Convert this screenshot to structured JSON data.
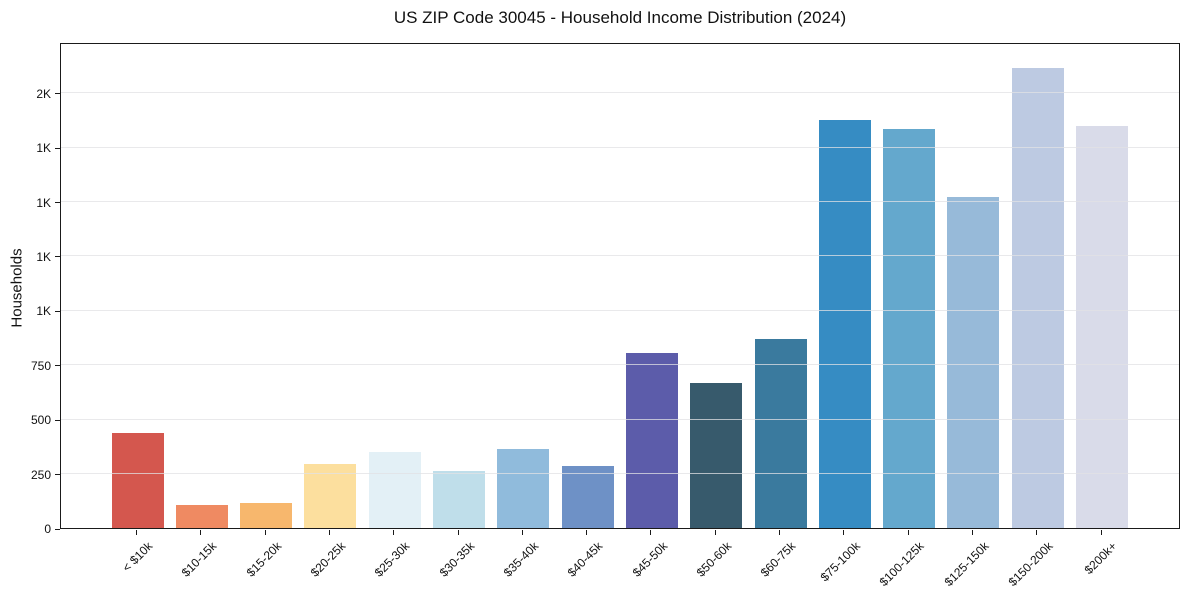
{
  "title": "US ZIP Code 30045 - Household Income Distribution (2024)",
  "chart_data": {
    "type": "bar",
    "title": "US ZIP Code 30045 - Household Income Distribution (2024)",
    "xlabel": "",
    "ylabel": "Households",
    "categories": [
      "< $10k",
      "$10-15k",
      "$15-20k",
      "$20-25k",
      "$25-30k",
      "$30-35k",
      "$35-40k",
      "$40-45k",
      "$45-50k",
      "$50-60k",
      "$60-75k",
      "$75-100k",
      "$100-125k",
      "$125-150k",
      "$150-200k",
      "$200k+"
    ],
    "values": [
      435,
      105,
      115,
      295,
      350,
      260,
      365,
      285,
      805,
      665,
      870,
      1875,
      1835,
      1520,
      2115,
      1845
    ],
    "bar_colors": [
      "#d4574e",
      "#ef8a62",
      "#f7b76d",
      "#fcdf9e",
      "#e3f0f6",
      "#bfdeea",
      "#90bbdc",
      "#6e91c6",
      "#5c5caa",
      "#375a6c",
      "#3a7a9e",
      "#368cc3",
      "#64a8cd",
      "#97bad9",
      "#bdcae2",
      "#d9dbe9"
    ],
    "yticks": [
      {
        "value": 0,
        "label": "0"
      },
      {
        "value": 250,
        "label": "250"
      },
      {
        "value": 500,
        "label": "500"
      },
      {
        "value": 750,
        "label": "750"
      },
      {
        "value": 1000,
        "label": "1K"
      },
      {
        "value": 1250,
        "label": "1K"
      },
      {
        "value": 1500,
        "label": "1K"
      },
      {
        "value": 1750,
        "label": "1K"
      },
      {
        "value": 2000,
        "label": "2K"
      }
    ],
    "ylim": [
      0,
      2233
    ],
    "grid": "horizontal",
    "legend": "none",
    "colors": {
      "background": "#ffffff",
      "spine": "#1a1a1a",
      "grid": "#e1e1e4",
      "text": "#111111"
    }
  }
}
